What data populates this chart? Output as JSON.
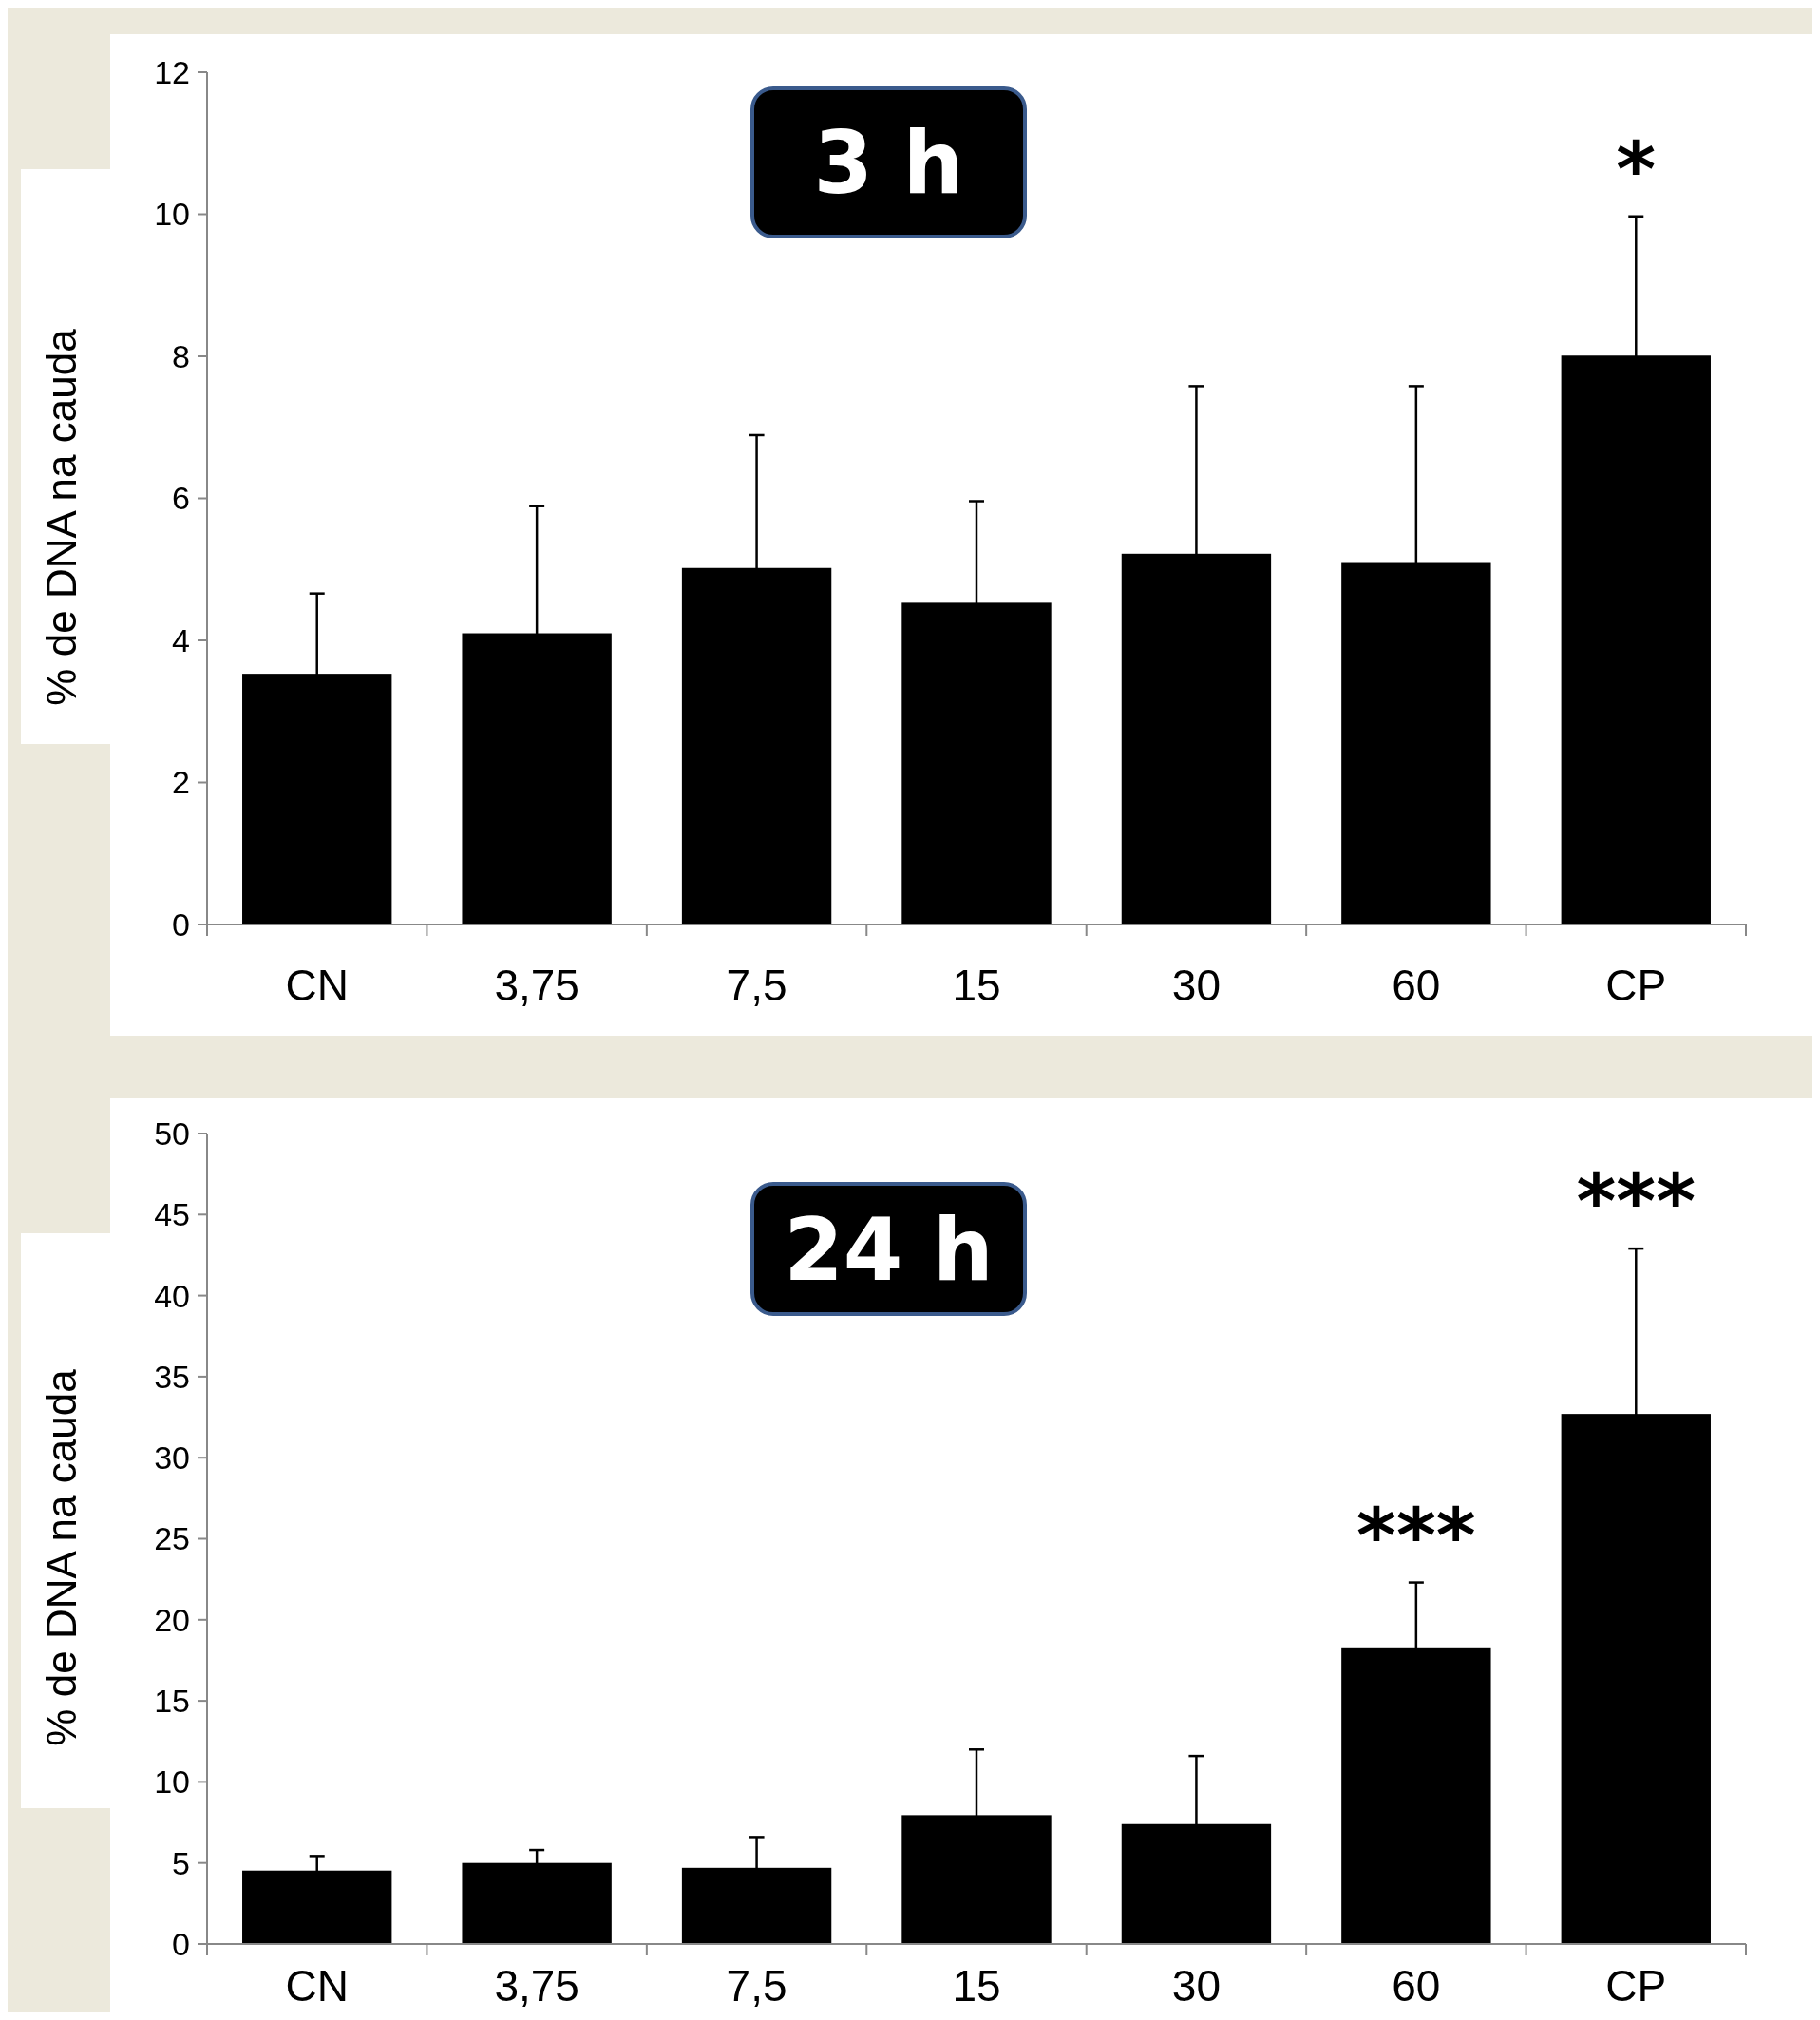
{
  "chart_data": [
    {
      "type": "bar",
      "title": "3 h",
      "ylabel": "% de DNA na cauda",
      "categories": [
        "CN",
        "3,75",
        "7,5",
        "15",
        "30",
        "60",
        "CP"
      ],
      "series": [
        {
          "color": "#000000",
          "values": [
            3.53,
            4.1,
            5.02,
            4.53,
            5.22,
            5.09,
            8.01
          ],
          "errors": [
            1.13,
            1.79,
            1.87,
            1.43,
            2.36,
            2.49,
            1.96
          ]
        }
      ],
      "ylim": [
        0,
        12
      ],
      "yticks": [
        0,
        2,
        4,
        6,
        8,
        10,
        12
      ],
      "annotations": [
        {
          "text": "*",
          "x": "CP",
          "y": 9.97
        }
      ]
    },
    {
      "type": "bar",
      "title": "24 h",
      "ylabel": "% de DNA na cauda",
      "categories": [
        "CN",
        "3,75",
        "7,5",
        "15",
        "30",
        "60",
        "CP"
      ],
      "series": [
        {
          "color": "#000000",
          "values": [
            4.53,
            5.0,
            4.7,
            7.95,
            7.4,
            18.3,
            32.7
          ],
          "errors": [
            0.9,
            0.8,
            1.9,
            4.05,
            4.2,
            4.0,
            10.2
          ]
        }
      ],
      "ylim": [
        0,
        50
      ],
      "yticks": [
        0,
        5,
        10,
        15,
        20,
        25,
        30,
        35,
        40,
        45,
        50
      ],
      "annotations": [
        {
          "text": "***",
          "x": "60",
          "y": 22.3
        },
        {
          "text": "***",
          "x": "CP",
          "y": 42.9
        }
      ]
    }
  ]
}
